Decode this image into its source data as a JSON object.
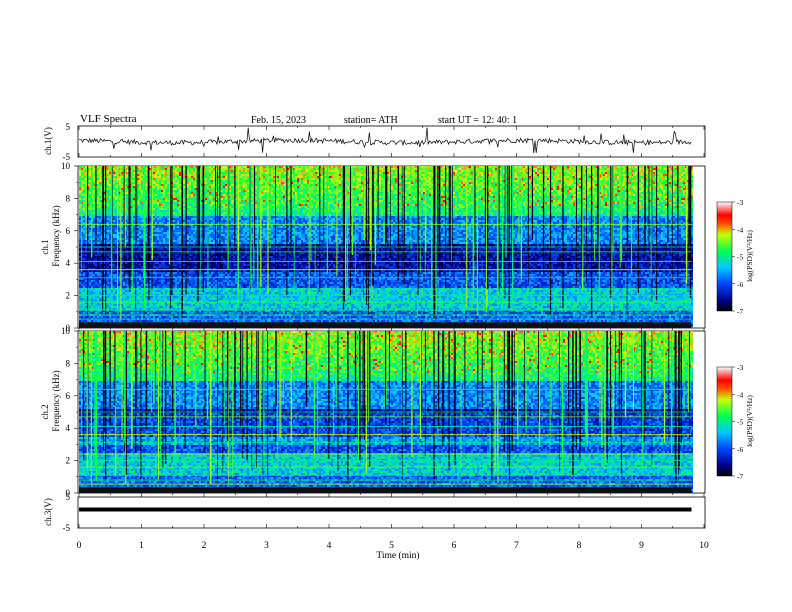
{
  "header": {
    "title": "VLF  Spectra",
    "date": "Feb. 15, 2023",
    "station": "station= ATH",
    "start_ut": "start  UT  =    12: 40: 1"
  },
  "chart_data": [
    {
      "type": "line",
      "panel": "ch1-waveform",
      "ylabel": "ch.1(V)",
      "ylim": [
        -5,
        5
      ],
      "yticks": [
        "5",
        "-5"
      ],
      "xlim": [
        0,
        10
      ],
      "data_xmax": 9.8,
      "baseline": 0
    },
    {
      "type": "heatmap",
      "panel": "ch1-spectrogram",
      "ylabel_top": "ch.1",
      "ylabel": "Frequency  (kHz)",
      "ylim": [
        0,
        10
      ],
      "yticks": [
        "10",
        "8",
        "6",
        "4",
        "2",
        "0"
      ],
      "xlim": [
        0,
        10
      ],
      "data_xmax": 9.8,
      "colorbar": {
        "label": "log(PSD)(V²/Hz)",
        "range": [
          -7,
          -3
        ],
        "ticks": [
          "-3",
          "-4",
          "-5",
          "-6",
          "-7"
        ]
      }
    },
    {
      "type": "heatmap",
      "panel": "ch2-spectrogram",
      "ylabel_top": "ch.2",
      "ylabel": "Frequency  (kHz)",
      "ylim": [
        0,
        10
      ],
      "yticks": [
        "10",
        "8",
        "6",
        "4",
        "2",
        "0"
      ],
      "xlim": [
        0,
        10
      ],
      "data_xmax": 9.8,
      "colorbar": {
        "label": "log(PSD)(V²/Hz)",
        "range": [
          -7,
          -3
        ],
        "ticks": [
          "-3",
          "-4",
          "-5",
          "-6",
          "-7"
        ]
      }
    },
    {
      "type": "line",
      "panel": "ch3-waveform",
      "ylabel": "ch.3(V)",
      "ylim": [
        -5,
        5
      ],
      "yticks": [
        "5",
        "-5"
      ],
      "xlim": [
        0,
        10
      ],
      "data_xmax": 9.8,
      "baseline": 0,
      "xlabel": "Time  (min)",
      "xticks": [
        "0",
        "1",
        "2",
        "3",
        "4",
        "5",
        "6",
        "7",
        "8",
        "9",
        "10"
      ]
    }
  ]
}
